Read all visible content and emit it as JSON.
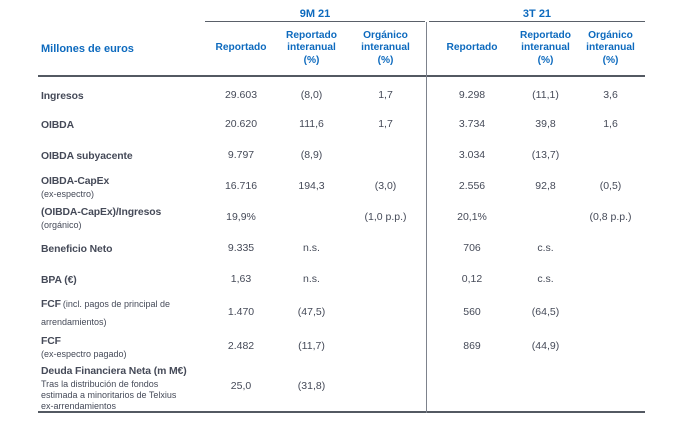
{
  "accent_color": "#0d6abe",
  "text_color": "#454a58",
  "line_color": "#535962",
  "table": {
    "unit_label": "Millones de euros",
    "groups": [
      {
        "label": "9M 21",
        "columns": [
          "Reportado",
          "Reportado\ninteranual\n(%)",
          "Orgánico\ninteranual\n(%)"
        ]
      },
      {
        "label": "3T 21",
        "columns": [
          "Reportado",
          "Reportado\ninteranual\n(%)",
          "Orgánico\ninteranual\n(%)"
        ]
      }
    ],
    "rows": [
      {
        "label": "Ingresos",
        "suffix": "",
        "sub": "",
        "values": [
          "29.603",
          "(8,0)",
          "1,7",
          "9.298",
          "(11,1)",
          "3,6"
        ]
      },
      {
        "label": "OIBDA",
        "suffix": "",
        "sub": "",
        "values": [
          "20.620",
          "111,6",
          "1,7",
          "3.734",
          "39,8",
          "1,6"
        ]
      },
      {
        "label": "OIBDA subyacente",
        "suffix": "",
        "sub": "",
        "values": [
          "9.797",
          "(8,9)",
          "",
          "3.034",
          "(13,7)",
          ""
        ]
      },
      {
        "label": "OIBDA-CapEx",
        "suffix": "",
        "sub": "(ex-espectro)",
        "values": [
          "16.716",
          "194,3",
          "(3,0)",
          "2.556",
          "92,8",
          "(0,5)"
        ]
      },
      {
        "label": "(OIBDA-CapEx)/Ingresos",
        "suffix": "",
        "sub": "(orgánico)",
        "values": [
          "19,9%",
          "",
          "(1,0 p.p.)",
          "20,1%",
          "",
          "(0,8 p.p.)"
        ]
      },
      {
        "label": "Beneficio Neto",
        "suffix": "",
        "sub": "",
        "values": [
          "9.335",
          "n.s.",
          "",
          "706",
          "c.s.",
          ""
        ]
      },
      {
        "label": "BPA (€)",
        "suffix": "",
        "sub": "",
        "values": [
          "1,63",
          "n.s.",
          "",
          "0,12",
          "c.s.",
          ""
        ]
      },
      {
        "label": "FCF",
        "suffix": "(incl. pagos de principal de arrendamientos)",
        "sub": "",
        "values": [
          "1.470",
          "(47,5)",
          "",
          "560",
          "(64,5)",
          ""
        ]
      },
      {
        "label": "FCF",
        "suffix": "",
        "sub": "(ex-espectro pagado)",
        "values": [
          "2.482",
          "(11,7)",
          "",
          "869",
          "(44,9)",
          ""
        ]
      },
      {
        "label": "Deuda Financiera Neta (m M€)",
        "suffix": "",
        "sub": "Tras la distribución de fondos\nestimada a minoritarios de Telxius\nex-arrendamientos",
        "values": [
          "25,0",
          "(31,8)",
          "",
          "",
          "",
          ""
        ]
      }
    ]
  }
}
